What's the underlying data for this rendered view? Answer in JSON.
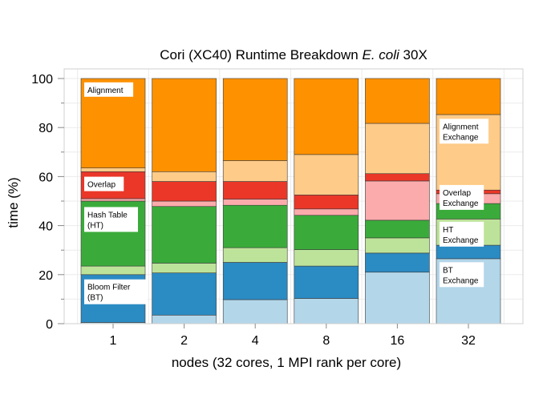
{
  "chart_data": {
    "type": "bar",
    "stacked": true,
    "title": "Cori (XC40) Runtime Breakdown",
    "title_italic": "E. coli",
    "title_suffix": "30X",
    "xlabel": "nodes (32 cores, 1 MPI rank per core)",
    "ylabel": "time (%)",
    "ylim": [
      0,
      100
    ],
    "yticks": [
      0,
      20,
      40,
      60,
      80,
      100
    ],
    "grid": true,
    "categories": [
      "1",
      "2",
      "4",
      "8",
      "16",
      "32"
    ],
    "series": [
      {
        "name": "BT Exchange",
        "color": "#b3d6e9",
        "values": [
          0.5,
          3.5,
          9.8,
          10.3,
          21.0,
          26.5
        ]
      },
      {
        "name": "Bloom Filter (BT)",
        "color": "#2b8bc3",
        "values": [
          19.5,
          17.2,
          15.2,
          13.2,
          7.8,
          5.5
        ]
      },
      {
        "name": "HT Exchange",
        "color": "#bde39a",
        "values": [
          3.5,
          4.0,
          6.0,
          6.7,
          6.2,
          10.7
        ]
      },
      {
        "name": "Hash Table (HT)",
        "color": "#3aab3a",
        "values": [
          26.5,
          23.1,
          17.3,
          14.0,
          7.2,
          6.3
        ]
      },
      {
        "name": "Overlap Exchange",
        "color": "#fbabab",
        "values": [
          1.0,
          2.2,
          2.5,
          2.6,
          16.0,
          4.0
        ]
      },
      {
        "name": "Overlap",
        "color": "#ea3728",
        "values": [
          11.0,
          8.0,
          7.2,
          5.7,
          3.0,
          1.5
        ]
      },
      {
        "name": "Alignment Exchange",
        "color": "#fecb88",
        "values": [
          1.5,
          4.0,
          8.5,
          16.5,
          20.5,
          30.8
        ]
      },
      {
        "name": "Alignment",
        "color": "#fd9100",
        "values": [
          36.5,
          38.0,
          33.5,
          31.0,
          18.3,
          14.7
        ]
      }
    ],
    "annotations": [
      {
        "bar": 0,
        "y": 95.5,
        "lines": [
          "Alignment"
        ]
      },
      {
        "bar": 0,
        "y": 57.0,
        "lines": [
          "Overlap"
        ]
      },
      {
        "bar": 0,
        "y": 42.5,
        "lines": [
          "Hash Table",
          "(HT)"
        ]
      },
      {
        "bar": 0,
        "y": 13.0,
        "lines": [
          "Bloom Filter",
          "(BT)"
        ]
      },
      {
        "bar": 5,
        "y": 78.5,
        "lines": [
          "Alignment",
          "Exchange"
        ]
      },
      {
        "bar": 5,
        "y": 51.5,
        "lines": [
          "Overlap",
          "Exchange"
        ]
      },
      {
        "bar": 5,
        "y": 36.5,
        "lines": [
          "HT",
          "Exchange"
        ]
      },
      {
        "bar": 5,
        "y": 20.0,
        "lines": [
          "BT",
          "Exchange"
        ]
      }
    ]
  }
}
